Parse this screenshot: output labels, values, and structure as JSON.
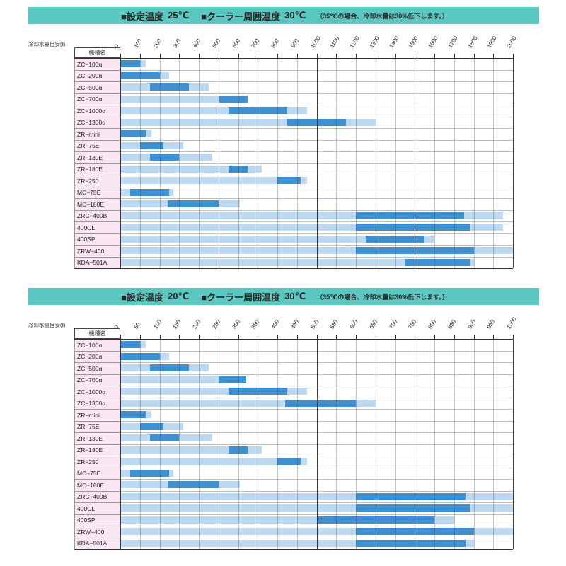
{
  "colors": {
    "band": "#5bc7c1",
    "bar_light": "#bcd9f1",
    "bar_dark": "#3f90d0",
    "label_bg": "#fbe7f3"
  },
  "panels": [
    {
      "header": {
        "seg1": "■設定温度",
        "val1": "25℃",
        "seg2": "■クーラー周囲温度",
        "val2": "30℃",
        "note": "（35℃の場合、冷却水量は30%低下します。）"
      },
      "left_header": {
        "axis_label": "冷却水量目安(ℓ)",
        "col_label": "機種名"
      }
    },
    {
      "header": {
        "seg1": "■設定温度",
        "val1": "20℃",
        "seg2": "■クーラー周囲温度",
        "val2": "30℃",
        "note": "（35℃の場合、冷却水量は30%低下します。）"
      },
      "left_header": {
        "axis_label": "冷却水量目安(ℓ)",
        "col_label": "機種名"
      }
    }
  ],
  "chart_data": [
    {
      "type": "bar",
      "orientation": "horizontal",
      "title": "設定温度 25℃ ／ クーラー周囲温度 30℃",
      "xlabel": "冷却水量目安(ℓ)",
      "axis": {
        "min": 0,
        "max": 2000,
        "step": 100,
        "bold_every": 500
      },
      "bars": [
        {
          "model": "ZC−100α",
          "light": 130,
          "dark": [
            0,
            100
          ]
        },
        {
          "model": "ZC−200α",
          "light": 250,
          "dark": [
            0,
            200
          ]
        },
        {
          "model": "ZC−500α",
          "light": 450,
          "dark": [
            150,
            350
          ]
        },
        {
          "model": "ZC−700α",
          "light": 650,
          "dark": [
            500,
            650
          ]
        },
        {
          "model": "ZC−1000α",
          "light": 950,
          "dark": [
            550,
            850
          ]
        },
        {
          "model": "ZC−1300α",
          "light": 1300,
          "dark": [
            850,
            1150
          ]
        },
        {
          "model": "ZR−mini",
          "light": 160,
          "dark": [
            0,
            130
          ]
        },
        {
          "model": "ZR−75E",
          "light": 320,
          "dark": [
            100,
            220
          ]
        },
        {
          "model": "ZR−130E",
          "light": 470,
          "dark": [
            150,
            300
          ]
        },
        {
          "model": "ZR−180E",
          "light": 720,
          "dark": [
            550,
            650
          ]
        },
        {
          "model": "ZR−250",
          "light": 950,
          "dark": [
            800,
            920
          ]
        },
        {
          "model": "MC−75E",
          "light": 270,
          "dark": [
            50,
            250
          ]
        },
        {
          "model": "MC−180E",
          "light": 610,
          "dark": [
            240,
            500
          ]
        },
        {
          "model": "ZRC−400B",
          "light": 1950,
          "dark": [
            1200,
            1750
          ]
        },
        {
          "model": "400CL",
          "light": 1950,
          "dark": [
            1200,
            1780
          ]
        },
        {
          "model": "400SP",
          "light": 1600,
          "dark": [
            1250,
            1550
          ]
        },
        {
          "model": "ZRW−400",
          "light": 2000,
          "dark": [
            1200,
            1800
          ]
        },
        {
          "model": "KDA−501A",
          "light": 1800,
          "dark": [
            1450,
            1780
          ]
        }
      ]
    },
    {
      "type": "bar",
      "orientation": "horizontal",
      "title": "設定温度 20℃ ／ クーラー周囲温度 30℃",
      "xlabel": "冷却水量目安(ℓ)",
      "axis": {
        "min": 0,
        "max": 1000,
        "step": 50,
        "bold_every": 500
      },
      "bars": [
        {
          "model": "ZC−100α",
          "light": 65,
          "dark": [
            0,
            50
          ]
        },
        {
          "model": "ZC−200α",
          "light": 125,
          "dark": [
            0,
            100
          ]
        },
        {
          "model": "ZC−500α",
          "light": 225,
          "dark": [
            75,
            175
          ]
        },
        {
          "model": "ZC−700α",
          "light": 320,
          "dark": [
            250,
            320
          ]
        },
        {
          "model": "ZC−1000α",
          "light": 475,
          "dark": [
            275,
            425
          ]
        },
        {
          "model": "ZC−1300α",
          "light": 650,
          "dark": [
            420,
            600
          ]
        },
        {
          "model": "ZR−mini",
          "light": 80,
          "dark": [
            0,
            65
          ]
        },
        {
          "model": "ZR−75E",
          "light": 160,
          "dark": [
            50,
            110
          ]
        },
        {
          "model": "ZR−130E",
          "light": 235,
          "dark": [
            75,
            150
          ]
        },
        {
          "model": "ZR−180E",
          "light": 360,
          "dark": [
            275,
            325
          ]
        },
        {
          "model": "ZR−250",
          "light": 475,
          "dark": [
            400,
            460
          ]
        },
        {
          "model": "MC−75E",
          "light": 135,
          "dark": [
            25,
            125
          ]
        },
        {
          "model": "MC−180E",
          "light": 305,
          "dark": [
            120,
            250
          ]
        },
        {
          "model": "ZRC−400B",
          "light": 1000,
          "dark": [
            600,
            880
          ]
        },
        {
          "model": "400CL",
          "light": 1000,
          "dark": [
            600,
            890
          ]
        },
        {
          "model": "400SP",
          "light": 850,
          "dark": [
            500,
            800
          ]
        },
        {
          "model": "ZRW−400",
          "light": 1000,
          "dark": [
            600,
            900
          ]
        },
        {
          "model": "KDA−501A",
          "light": 900,
          "dark": [
            600,
            880
          ]
        }
      ]
    }
  ]
}
